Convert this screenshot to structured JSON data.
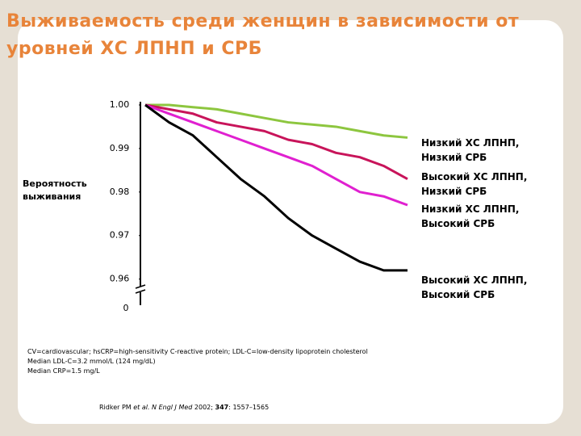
{
  "chart_data": {
    "type": "line",
    "title": "Выживаемость среди женщин в зависимости от уровней ХС ЛПНП и СРБ",
    "y_label": "Вероятность выживания",
    "categories": [
      null,
      null,
      null,
      null,
      null,
      null,
      null,
      null,
      null,
      null,
      null,
      null
    ],
    "series": [
      {
        "name": "Низкий ХС ЛПНП, Низкий СРБ",
        "color": "#8dc63f",
        "values": [
          1.0,
          1.0,
          0.9995,
          0.999,
          0.998,
          0.997,
          0.996,
          0.9955,
          0.995,
          0.994,
          0.993,
          0.9925
        ]
      },
      {
        "name": "Высокий ХС ЛПНП, Низкий СРБ",
        "color": "#c8145a",
        "values": [
          1.0,
          0.999,
          0.998,
          0.996,
          0.995,
          0.994,
          0.992,
          0.991,
          0.989,
          0.988,
          0.986,
          0.983
        ]
      },
      {
        "name": "Низкий ХС ЛПНП, Высокий СРБ",
        "color": "#e020d0",
        "values": [
          1.0,
          0.998,
          0.996,
          0.994,
          0.992,
          0.99,
          0.988,
          0.986,
          0.983,
          0.98,
          0.979,
          0.977
        ]
      },
      {
        "name": "Высокий ХС ЛПНП, Высокий СРБ",
        "color": "#000000",
        "values": [
          1.0,
          0.996,
          0.993,
          0.988,
          0.983,
          0.979,
          0.974,
          0.97,
          0.967,
          0.964,
          0.962,
          0.962
        ]
      }
    ],
    "ylim": [
      0.954,
      1.0
    ],
    "yticks": [
      {
        "value": 1.0,
        "label": "1.00"
      },
      0.99,
      0.98,
      0.97,
      0.96
    ],
    "y_break_label": "0",
    "footnotes": [
      "CV=cardiovascular; hsCRP=high-sensitivity C-reactive protein; LDL-C=low-density lipoprotein cholesterol",
      "Median LDL-C=3.2 mmol/L (124 mg/dL)",
      "Median CRP=1.5 mg/L"
    ],
    "citation": {
      "author": "Ridker PM",
      "etal": "et al. N Engl J Med",
      "year": "2002;",
      "volume": "347",
      "pages": ": 1557–1565"
    }
  }
}
